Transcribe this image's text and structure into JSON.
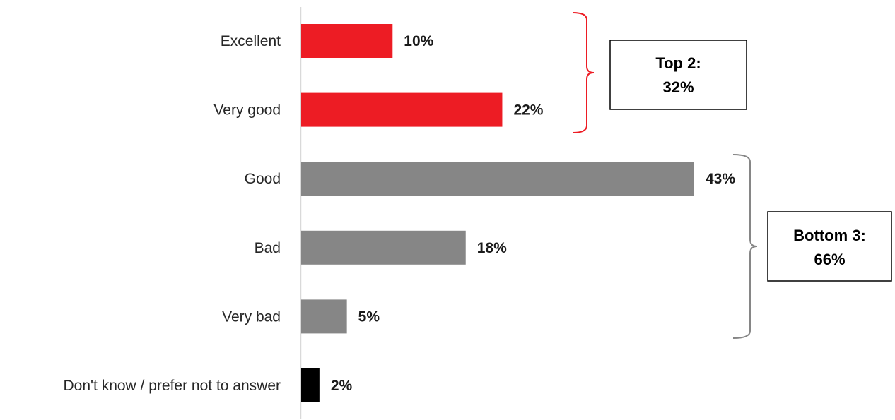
{
  "chart_data": {
    "type": "bar",
    "orientation": "horizontal",
    "categories": [
      "Excellent",
      "Very good",
      "Good",
      "Bad",
      "Very bad",
      "Don't know / prefer not to answer"
    ],
    "values": [
      10,
      22,
      43,
      18,
      5,
      2
    ],
    "value_labels": [
      "10%",
      "22%",
      "43%",
      "18%",
      "5%",
      "2%"
    ],
    "bar_colors": [
      "#ed1c24",
      "#ed1c24",
      "#868686",
      "#868686",
      "#868686",
      "#000000"
    ],
    "xlim": [
      0,
      50
    ],
    "grid": false,
    "legend": "none",
    "title": "",
    "xlabel": "",
    "ylabel": "",
    "annotations": [
      {
        "label_line1": "Top 2:",
        "label_line2": "32%",
        "categories": [
          "Excellent",
          "Very good"
        ],
        "color": "#ed1c24"
      },
      {
        "label_line1": "Bottom 3:",
        "label_line2": "66%",
        "categories": [
          "Good",
          "Bad",
          "Very bad"
        ],
        "color": "#868686"
      }
    ]
  }
}
